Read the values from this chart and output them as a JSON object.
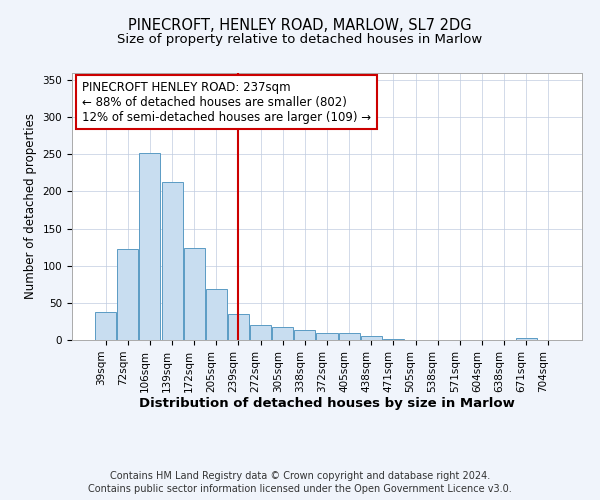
{
  "title": "PINECROFT, HENLEY ROAD, MARLOW, SL7 2DG",
  "subtitle": "Size of property relative to detached houses in Marlow",
  "xlabel": "Distribution of detached houses by size in Marlow",
  "ylabel": "Number of detached properties",
  "categories": [
    "39sqm",
    "72sqm",
    "106sqm",
    "139sqm",
    "172sqm",
    "205sqm",
    "239sqm",
    "272sqm",
    "305sqm",
    "338sqm",
    "372sqm",
    "405sqm",
    "438sqm",
    "471sqm",
    "505sqm",
    "538sqm",
    "571sqm",
    "604sqm",
    "638sqm",
    "671sqm",
    "704sqm"
  ],
  "values": [
    38,
    123,
    252,
    212,
    124,
    69,
    35,
    20,
    17,
    13,
    10,
    10,
    5,
    1,
    0,
    0,
    0,
    0,
    0,
    3,
    0
  ],
  "bar_color": "#c8ddf0",
  "bar_edge_color": "#5a9bc4",
  "vline_x_index": 6,
  "vline_color": "#cc0000",
  "annotation_title": "PINECROFT HENLEY ROAD: 237sqm",
  "annotation_line1": "← 88% of detached houses are smaller (802)",
  "annotation_line2": "12% of semi-detached houses are larger (109) →",
  "annotation_box_color": "#ffffff",
  "annotation_box_edge": "#cc0000",
  "ylim": [
    0,
    360
  ],
  "yticks": [
    0,
    50,
    100,
    150,
    200,
    250,
    300,
    350
  ],
  "footnote1": "Contains HM Land Registry data © Crown copyright and database right 2024.",
  "footnote2": "Contains public sector information licensed under the Open Government Licence v3.0.",
  "background_color": "#f0f4fb",
  "plot_background": "#ffffff",
  "title_fontsize": 10.5,
  "subtitle_fontsize": 9.5,
  "xlabel_fontsize": 9.5,
  "ylabel_fontsize": 8.5,
  "tick_fontsize": 7.5,
  "footnote_fontsize": 7,
  "annotation_fontsize": 8.5
}
